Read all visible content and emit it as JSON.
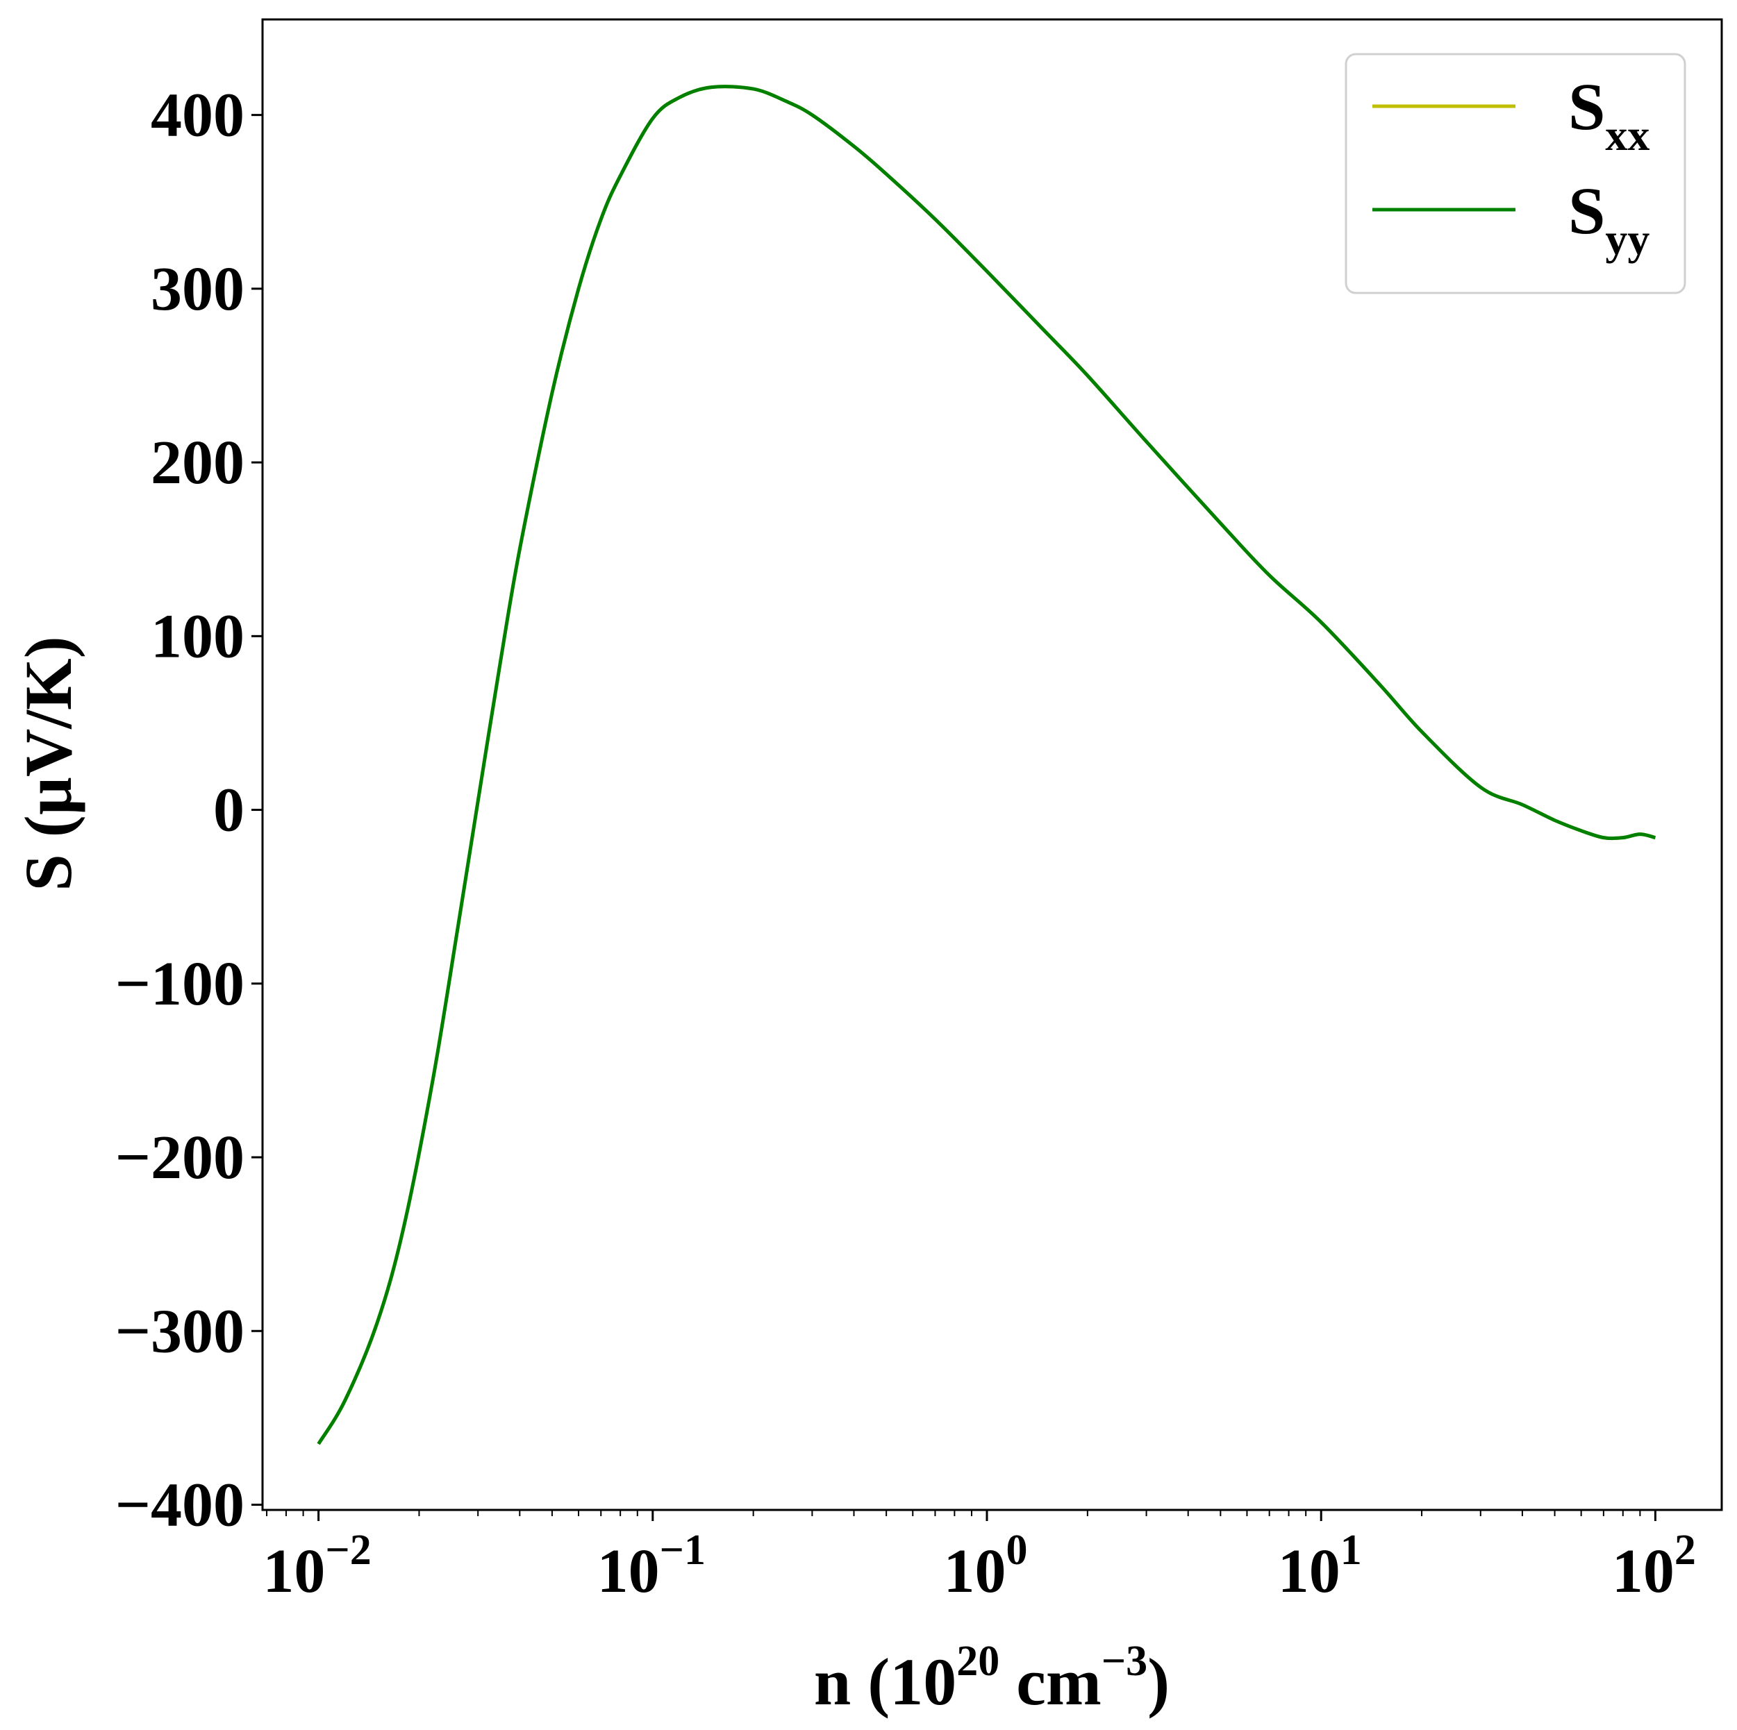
{
  "chart_data": {
    "type": "line",
    "xscale": "log",
    "xlim": [
      0.0068,
      158
    ],
    "ylim": [
      -403,
      455
    ],
    "x_ticks": [
      {
        "base": "10",
        "exp": "−2",
        "value": 0.01
      },
      {
        "base": "10",
        "exp": "−1",
        "value": 0.1
      },
      {
        "base": "10",
        "exp": "0",
        "value": 1
      },
      {
        "base": "10",
        "exp": "1",
        "value": 10
      },
      {
        "base": "10",
        "exp": "2",
        "value": 100
      }
    ],
    "y_ticks": [
      {
        "label": "−400",
        "value": -400
      },
      {
        "label": "−300",
        "value": -300
      },
      {
        "label": "−200",
        "value": -200
      },
      {
        "label": "−100",
        "value": -100
      },
      {
        "label": "0",
        "value": 0
      },
      {
        "label": "100",
        "value": 100
      },
      {
        "label": "200",
        "value": 200
      },
      {
        "label": "300",
        "value": 300
      },
      {
        "label": "400",
        "value": 400
      }
    ],
    "xlabel": {
      "main": "n (10",
      "sup1": "20",
      "mid": " cm",
      "sup2": "−3",
      "end": ")"
    },
    "ylabel": "S (µV/K)",
    "legend_position": "top-right",
    "grid": false,
    "series": [
      {
        "name": "S",
        "sub": "xx",
        "color": "#bfbf00",
        "x": [
          0.01,
          0.012,
          0.015,
          0.018,
          0.022,
          0.026,
          0.03,
          0.035,
          0.04,
          0.05,
          0.06,
          0.07,
          0.08,
          0.1,
          0.12,
          0.15,
          0.2,
          0.25,
          0.3,
          0.4,
          0.5,
          0.7,
          1,
          1.5,
          2,
          3,
          5,
          7,
          10,
          15,
          20,
          30,
          40,
          50,
          60,
          70,
          80,
          90,
          100
        ],
        "y": [
          -365,
          -340,
          -295,
          -240,
          -155,
          -70,
          5,
          85,
          150,
          240,
          300,
          340,
          365,
          398,
          410,
          416,
          415,
          408,
          400,
          382,
          366,
          340,
          310,
          275,
          250,
          212,
          165,
          135,
          108,
          72,
          45,
          13,
          3,
          -6,
          -12,
          -16,
          -16,
          -14,
          -16
        ]
      },
      {
        "name": "S",
        "sub": "yy",
        "color": "#008000",
        "x": [
          0.01,
          0.012,
          0.015,
          0.018,
          0.022,
          0.026,
          0.03,
          0.035,
          0.04,
          0.05,
          0.06,
          0.07,
          0.08,
          0.1,
          0.12,
          0.15,
          0.2,
          0.25,
          0.3,
          0.4,
          0.5,
          0.7,
          1,
          1.5,
          2,
          3,
          5,
          7,
          10,
          15,
          20,
          30,
          40,
          50,
          60,
          70,
          80,
          90,
          100
        ],
        "y": [
          -365,
          -340,
          -295,
          -240,
          -155,
          -70,
          5,
          85,
          150,
          240,
          300,
          340,
          365,
          398,
          410,
          416,
          415,
          408,
          400,
          382,
          366,
          340,
          310,
          275,
          250,
          212,
          165,
          135,
          108,
          72,
          45,
          13,
          3,
          -6,
          -12,
          -16,
          -16,
          -14,
          -16
        ]
      }
    ]
  }
}
